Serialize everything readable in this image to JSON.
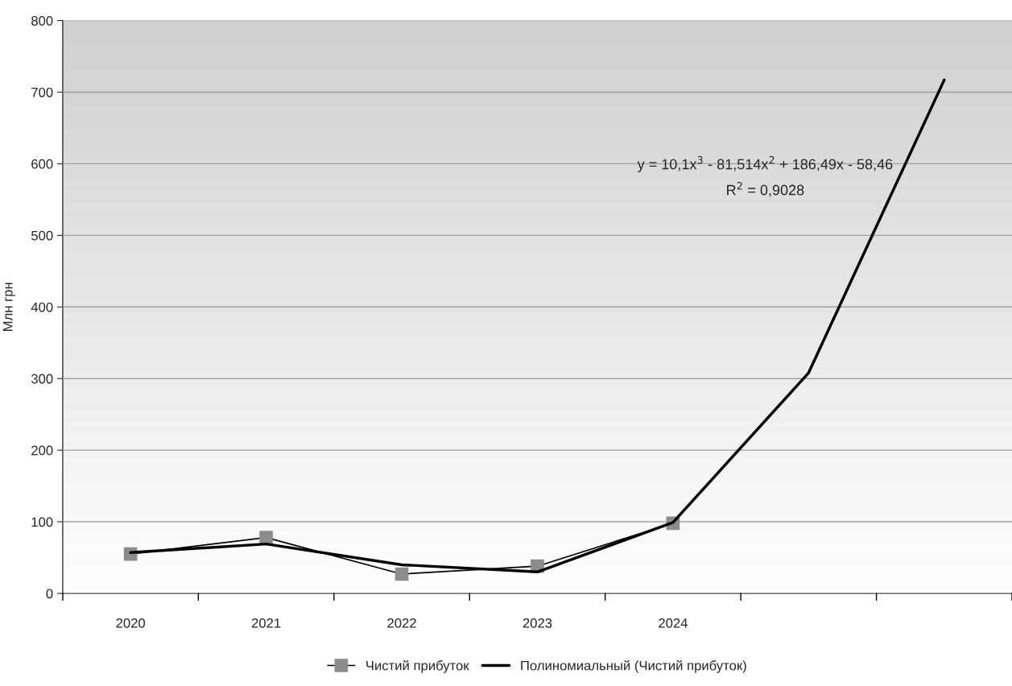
{
  "chart_data": {
    "type": "line",
    "ylabel": "Млн грн",
    "categories": [
      "2020",
      "2021",
      "2022",
      "2023",
      "2024",
      null,
      null
    ],
    "series": [
      {
        "name": "Чистий прибуток",
        "color": "#000000",
        "marker": "square",
        "values": [
          55,
          78,
          27,
          38,
          98,
          null,
          null
        ]
      },
      {
        "name": "Полиномиальный (Чистий прибуток)",
        "color": "#000000",
        "marker": "none",
        "values": [
          57,
          69,
          40,
          30,
          99,
          308,
          717
        ]
      }
    ],
    "ylim": [
      0,
      800
    ],
    "yticks": [
      0,
      100,
      200,
      300,
      400,
      500,
      600,
      700,
      800
    ],
    "grid": "y",
    "legend": "bottom",
    "annotations": [
      "y = 10,1x$^{3}$ - 81,514x$^{2}$ + 186,49x - 58,46",
      "R$^{2}$ = 0,9028"
    ]
  }
}
